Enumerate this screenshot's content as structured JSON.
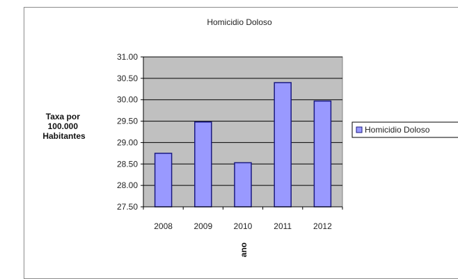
{
  "chart_data": {
    "type": "bar",
    "title": "Homicidio Doloso",
    "ylabel": [
      "Taxa por",
      "100.000",
      "Habitantes"
    ],
    "xlabel": "ano",
    "categories": [
      "2008",
      "2009",
      "2010",
      "2011",
      "2012"
    ],
    "series": [
      {
        "name": "Homicidio Doloso",
        "values": [
          28.75,
          29.48,
          28.53,
          30.4,
          29.97
        ]
      }
    ],
    "ylim": [
      27.5,
      31.0
    ],
    "yticks": [
      "27.50",
      "28.00",
      "28.50",
      "29.00",
      "29.50",
      "30.00",
      "30.50",
      "31.00"
    ],
    "grid": true,
    "legend": "right",
    "colors": {
      "bar": "#9999ff",
      "bar_stroke": "#1a1a80",
      "plot_bg": "#c0c0c0",
      "grid": "#000000"
    }
  }
}
